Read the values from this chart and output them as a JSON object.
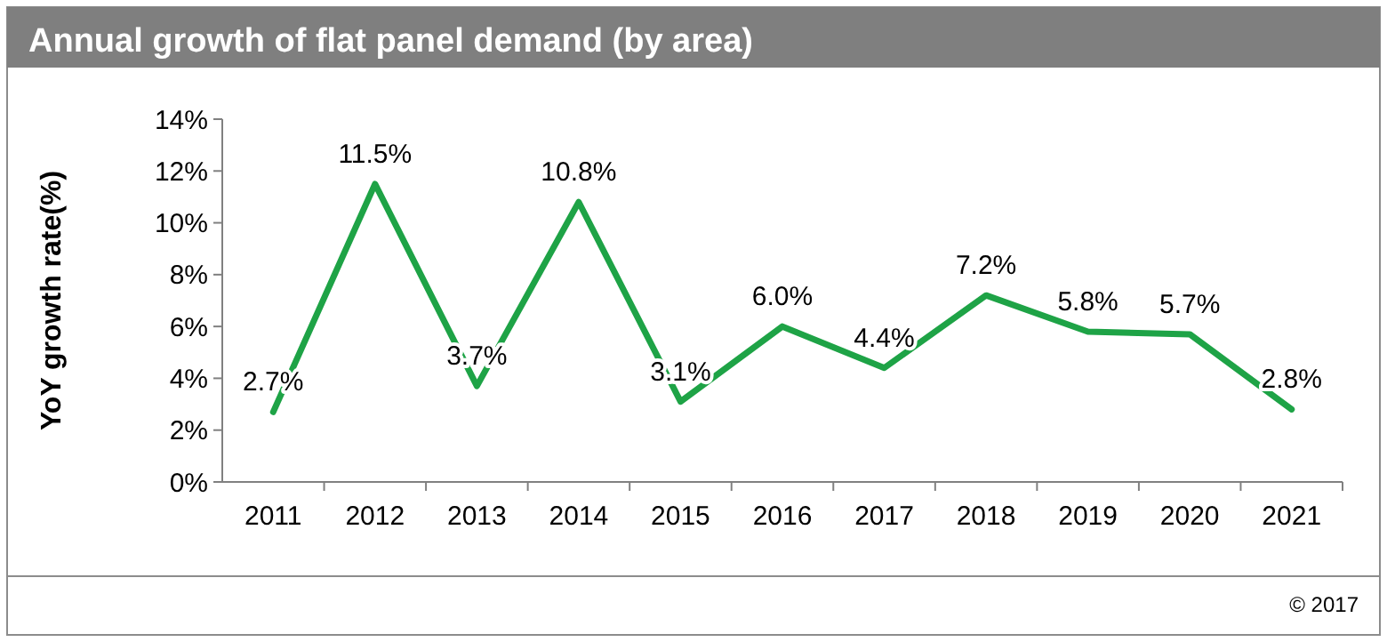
{
  "chart_data": {
    "type": "line",
    "title": "Annual growth of flat panel demand (by area)",
    "ylabel": "YoY growth rate(%)",
    "categories": [
      "2011",
      "2012",
      "2013",
      "2014",
      "2015",
      "2016",
      "2017",
      "2018",
      "2019",
      "2020",
      "2021"
    ],
    "series": [
      {
        "color": "#1ea346",
        "values": [
          2.7,
          11.5,
          3.7,
          10.8,
          3.1,
          6.0,
          4.4,
          7.2,
          5.8,
          5.7,
          2.8
        ]
      }
    ],
    "value_labels": [
      "2.7%",
      "11.5%",
      "3.7%",
      "10.8%",
      "3.1%",
      "6.0%",
      "4.4%",
      "7.2%",
      "5.8%",
      "5.7%",
      "2.8%"
    ],
    "ylim": [
      0,
      14
    ],
    "yticks": [
      {
        "value": 0,
        "label": "0%"
      },
      {
        "value": 2,
        "label": "2%"
      },
      {
        "value": 4,
        "label": "4%"
      },
      {
        "value": 6,
        "label": "6%"
      },
      {
        "value": 8,
        "label": "8%"
      },
      {
        "value": 10,
        "label": "10%"
      },
      {
        "value": 12,
        "label": "12%"
      },
      {
        "value": 14,
        "label": "14%"
      }
    ],
    "grid": false,
    "marker": "none",
    "line_style": "solid",
    "annotations": [
      "© 2017"
    ]
  }
}
